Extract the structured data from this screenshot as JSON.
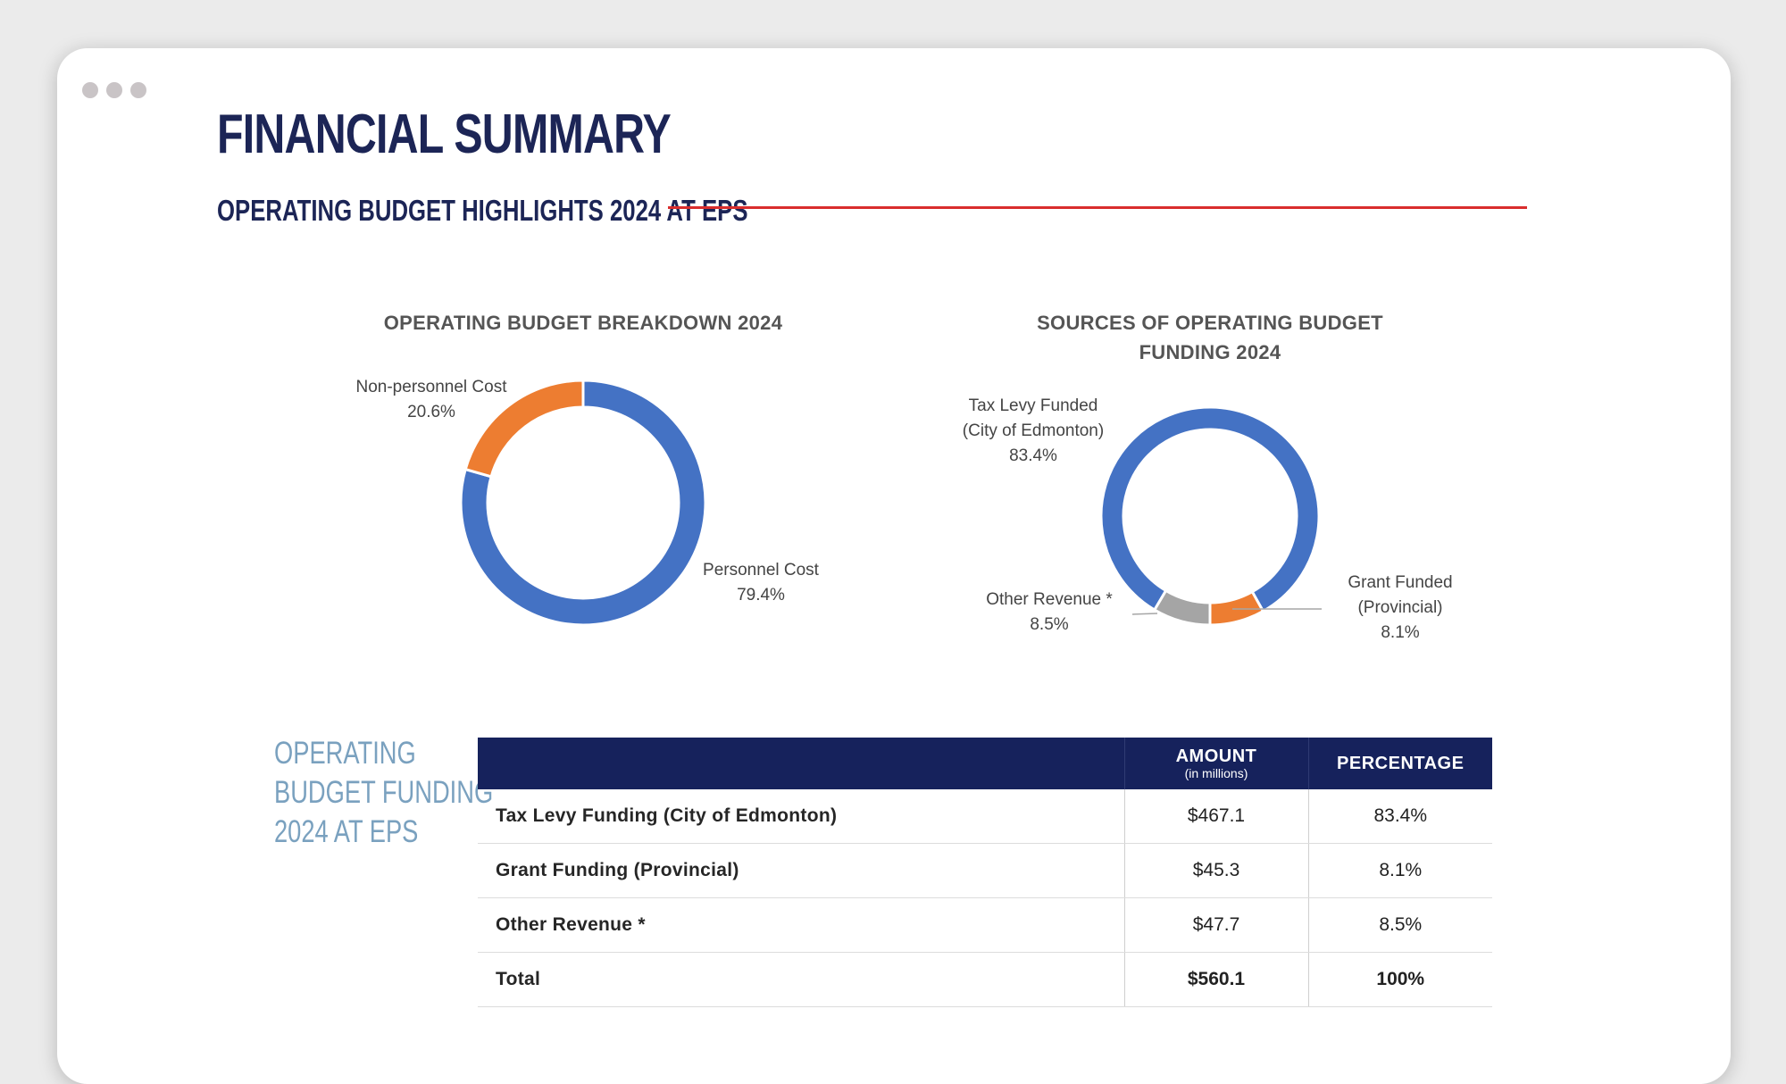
{
  "page": {
    "title": "FINANCIAL SUMMARY",
    "section_heading": "OPERATING BUDGET HIGHLIGHTS 2024 AT EPS",
    "accent_color": "#d92d2d",
    "heading_color": "#1c2556"
  },
  "chart_data": [
    {
      "type": "pie",
      "donut": true,
      "title": "OPERATING BUDGET BREAKDOWN 2024",
      "slices": [
        {
          "label": "Personnel Cost",
          "value": 79.4,
          "display": "79.4%",
          "color": "#4472c4"
        },
        {
          "label": "Non-personnel Cost",
          "value": 20.6,
          "display": "20.6%",
          "color": "#ed7d31"
        }
      ]
    },
    {
      "type": "pie",
      "donut": true,
      "title_lines": [
        "SOURCES OF OPERATING BUDGET",
        "FUNDING 2024"
      ],
      "slices": [
        {
          "label_lines": [
            "Tax Levy Funded",
            "(City of Edmonton)"
          ],
          "value": 83.4,
          "display": "83.4%",
          "color": "#4472c4"
        },
        {
          "label_lines": [
            "Grant Funded",
            "(Provincial)"
          ],
          "value": 8.1,
          "display": "8.1%",
          "color": "#ed7d31"
        },
        {
          "label_lines": [
            "Other Revenue *"
          ],
          "value": 8.5,
          "display": "8.5%",
          "color": "#a5a5a5"
        }
      ]
    }
  ],
  "funding_table": {
    "side_label_lines": [
      "OPERATING",
      "BUDGET FUNDING",
      "2024 AT EPS"
    ],
    "header": {
      "amount": "AMOUNT",
      "amount_sub": "(in millions)",
      "percentage": "PERCENTAGE"
    },
    "rows": [
      {
        "label": "Tax Levy Funding (City of Edmonton)",
        "amount": "$467.1",
        "percentage": "83.4%"
      },
      {
        "label": "Grant Funding (Provincial)",
        "amount": "$45.3",
        "percentage": "8.1%"
      },
      {
        "label": "Other Revenue *",
        "amount": "$47.7",
        "percentage": "8.5%"
      }
    ],
    "total": {
      "label": "Total",
      "amount": "$560.1",
      "percentage": "100%"
    }
  }
}
